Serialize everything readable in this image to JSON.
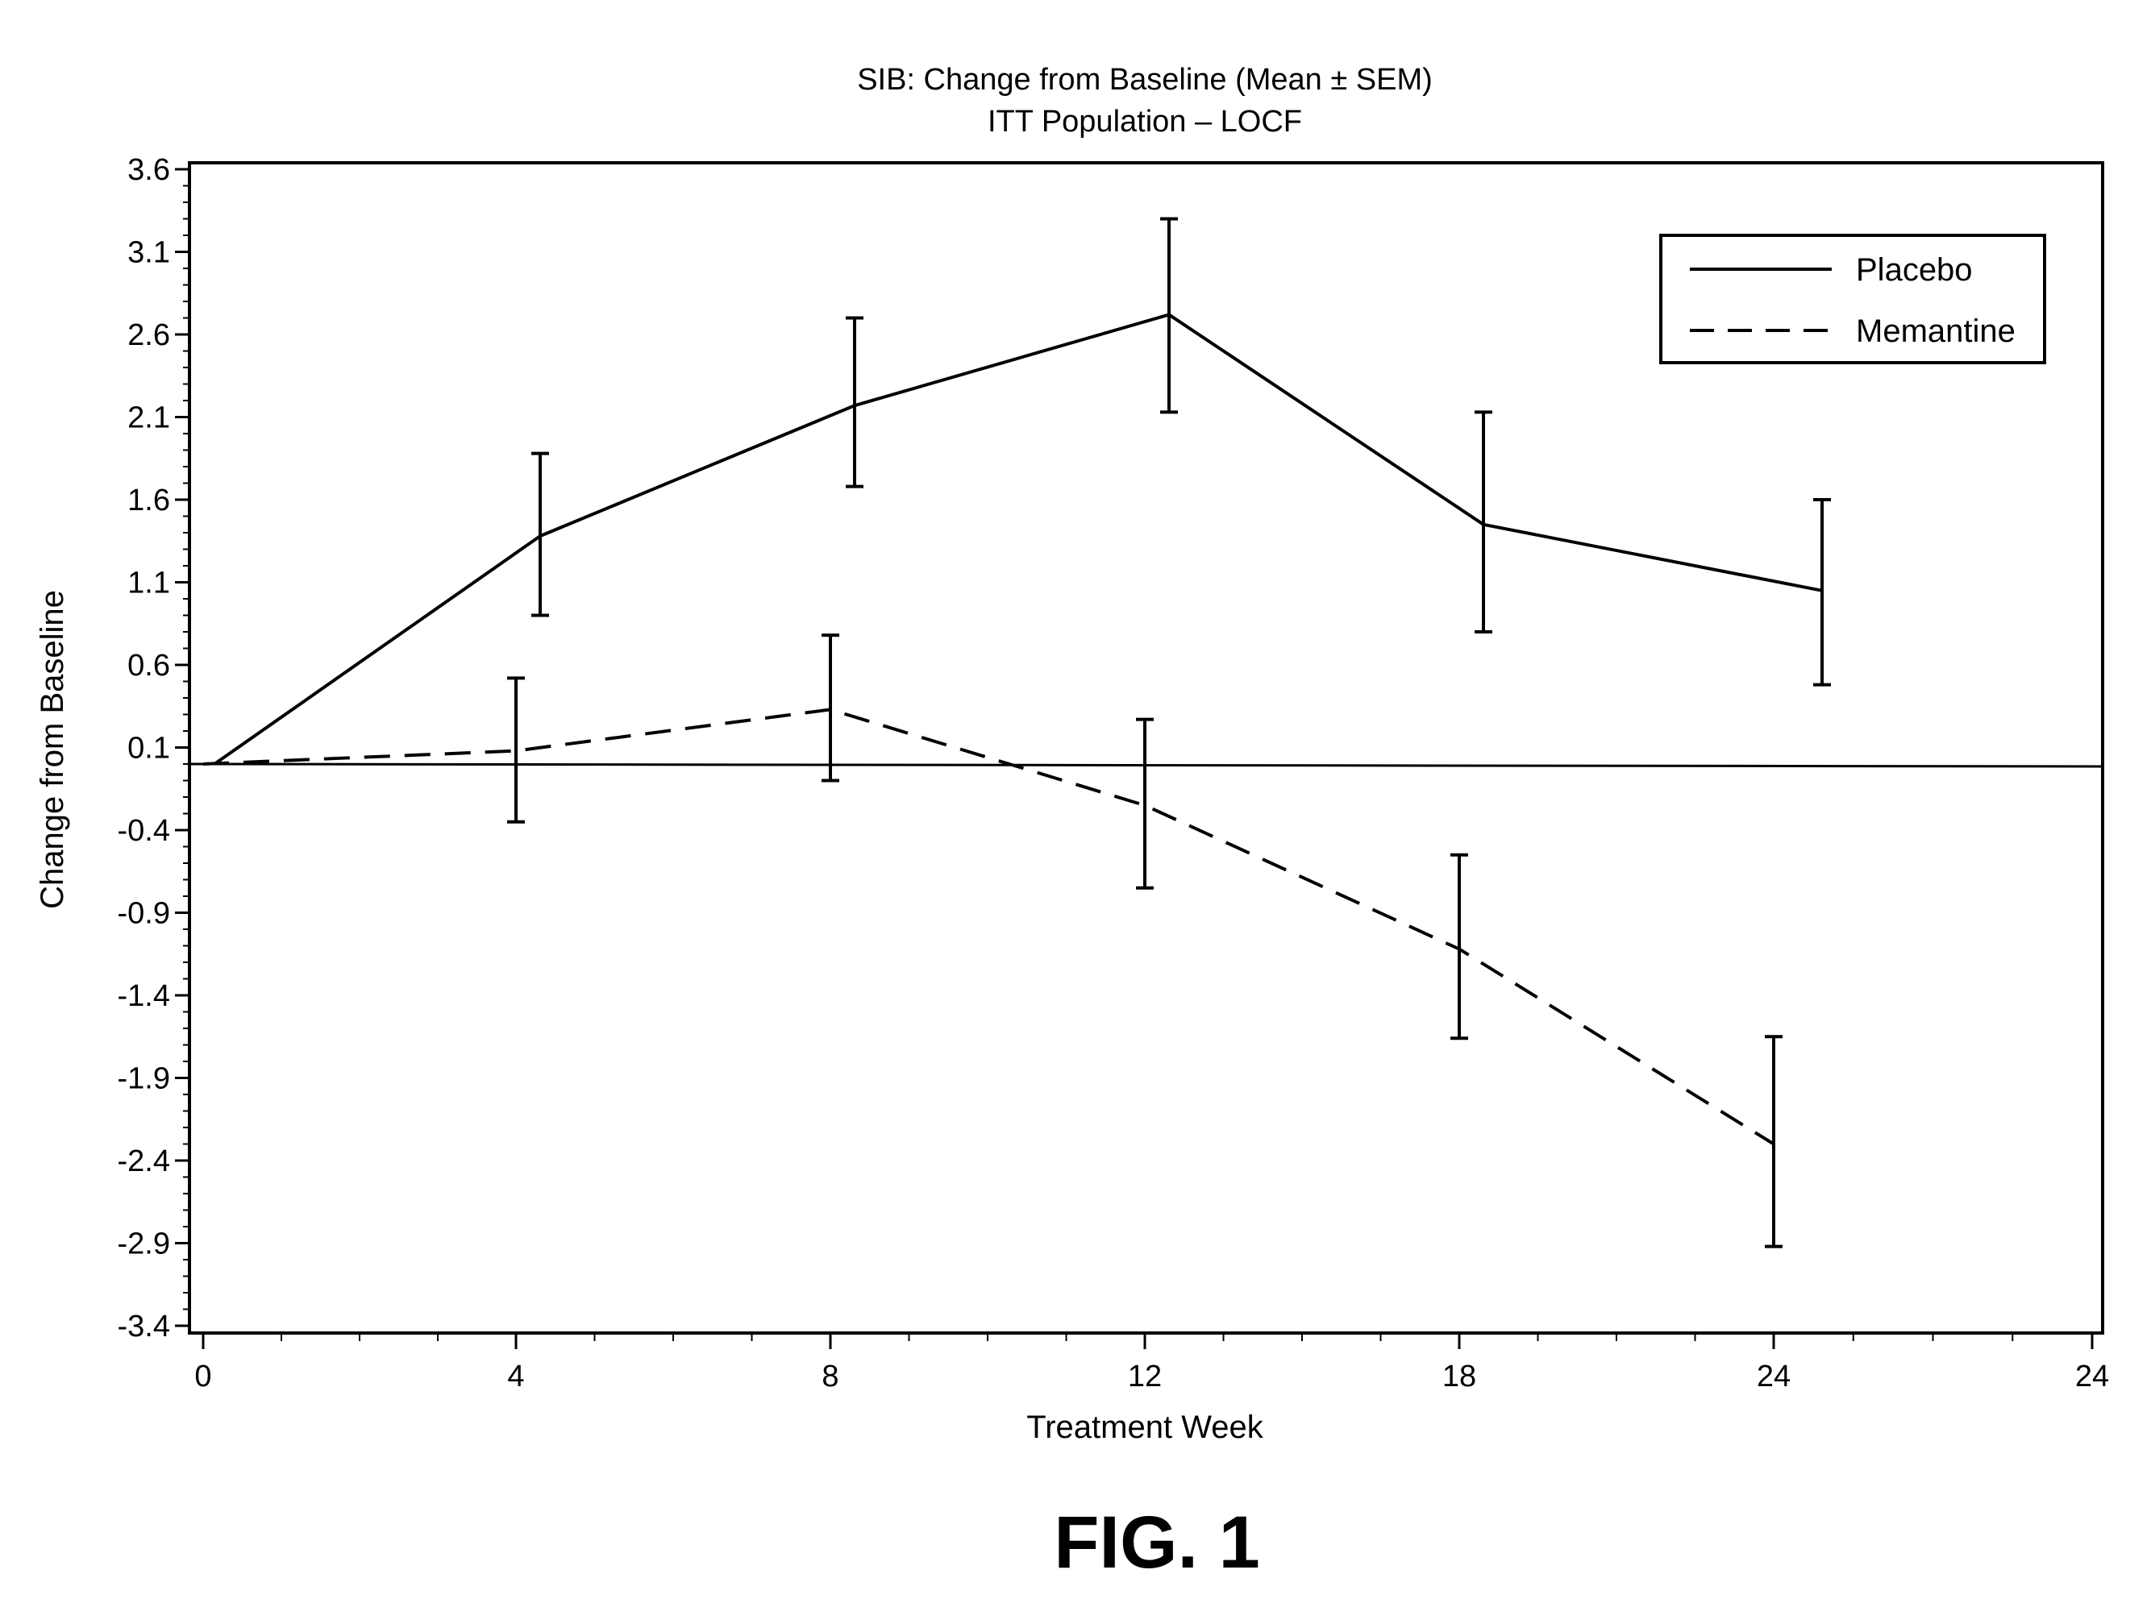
{
  "chart_data": {
    "type": "line",
    "title": "SIB: Change from Baseline (Mean ± SEM)",
    "subtitle": "ITT Population – LOCF",
    "xlabel": "Treatment Week",
    "ylabel": "Change from Baseline",
    "x_tick_labels": [
      "0",
      "4",
      "8",
      "12",
      "18",
      "24",
      "24"
    ],
    "y_tick_labels": [
      "3.6",
      "3.1",
      "2.6",
      "2.1",
      "1.6",
      "1.1",
      "0.6",
      "0.1",
      "-0.4",
      "-0.9",
      "-1.4",
      "-1.9",
      "-2.4",
      "-2.9",
      "-3.4"
    ],
    "ylim": [
      -3.4,
      3.6
    ],
    "reference_line_y": 0,
    "legend_position": "top-right",
    "series": [
      {
        "name": "Placebo",
        "line_style": "solid",
        "points": [
          {
            "x": 0,
            "y": 0.0
          },
          {
            "x": 4,
            "y": 1.38,
            "sem_low": 0.9,
            "sem_high": 1.88
          },
          {
            "x": 8,
            "y": 2.17,
            "sem_low": 1.68,
            "sem_high": 2.7
          },
          {
            "x": 12,
            "y": 2.72,
            "sem_low": 2.13,
            "sem_high": 3.3
          },
          {
            "x": 18,
            "y": 1.45,
            "sem_low": 0.8,
            "sem_high": 2.13
          },
          {
            "x": 24,
            "y": 1.05,
            "sem_low": 0.48,
            "sem_high": 1.6
          }
        ]
      },
      {
        "name": "Memantine",
        "line_style": "dashed",
        "points": [
          {
            "x": 0,
            "y": 0.0
          },
          {
            "x": 4,
            "y": 0.08,
            "sem_low": -0.35,
            "sem_high": 0.52
          },
          {
            "x": 8,
            "y": 0.33,
            "sem_low": -0.1,
            "sem_high": 0.78
          },
          {
            "x": 12,
            "y": -0.25,
            "sem_low": -0.75,
            "sem_high": 0.27
          },
          {
            "x": 18,
            "y": -1.12,
            "sem_low": -1.66,
            "sem_high": -0.55
          },
          {
            "x": 24,
            "y": -2.3,
            "sem_low": -2.92,
            "sem_high": -1.65
          }
        ]
      }
    ],
    "caption": "FIG. 1"
  }
}
